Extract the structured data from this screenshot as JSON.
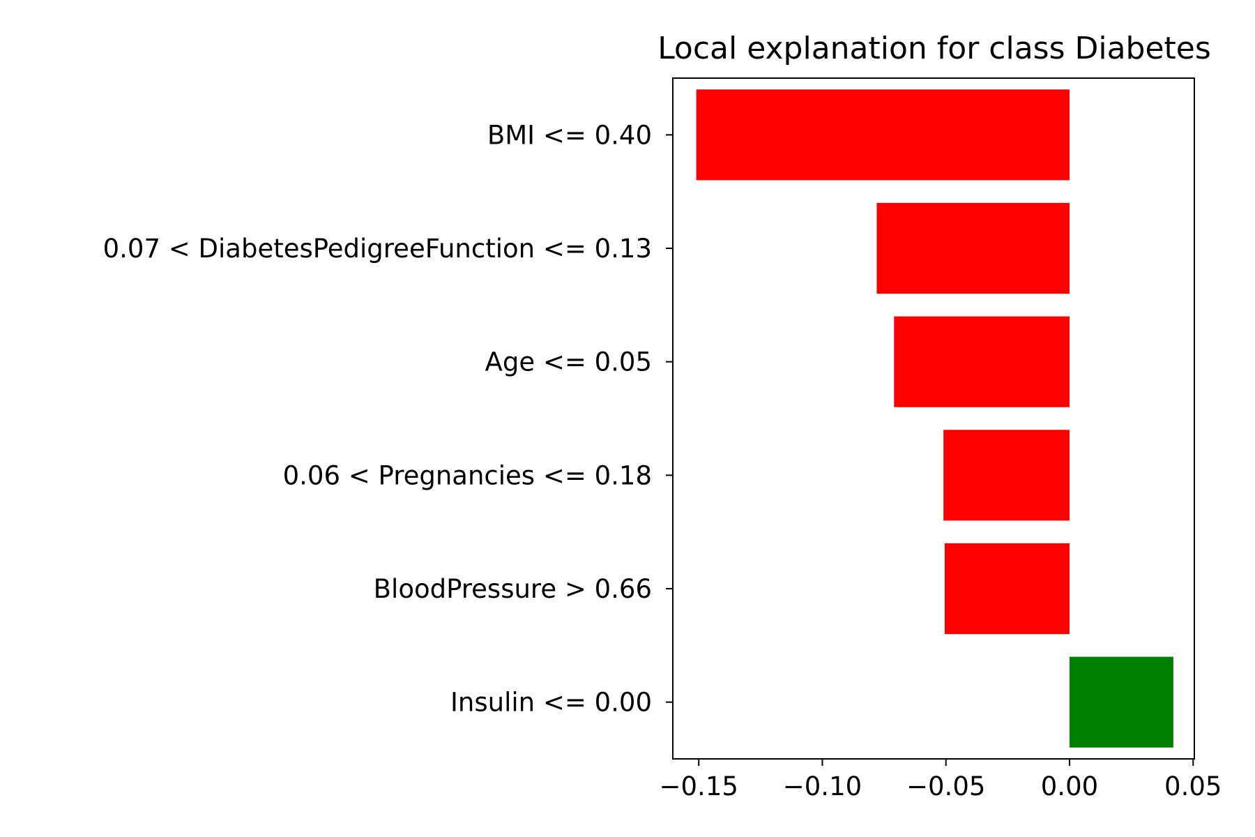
{
  "chart_data": {
    "type": "bar",
    "orientation": "horizontal",
    "title": "Local explanation for class Diabetes",
    "xlabel": "",
    "ylabel": "",
    "categories": [
      "BMI <= 0.40",
      "0.07 < DiabetesPedigreeFunction <= 0.13",
      "Age <= 0.05",
      "0.06 < Pregnancies <= 0.18",
      "BloodPressure > 0.66",
      "Insulin <= 0.00"
    ],
    "values": [
      -0.151,
      -0.078,
      -0.071,
      -0.051,
      -0.0505,
      0.042
    ],
    "colors": [
      "#ff0000",
      "#ff0000",
      "#ff0000",
      "#ff0000",
      "#ff0000",
      "#008000"
    ],
    "xlim": [
      -0.1605,
      0.0505
    ],
    "xticks": [
      -0.15,
      -0.1,
      -0.05,
      0.0,
      0.05
    ],
    "xtick_labels": [
      "−0.15",
      "−0.10",
      "−0.05",
      "0.00",
      "0.05"
    ],
    "grid": false,
    "legend": "none"
  }
}
